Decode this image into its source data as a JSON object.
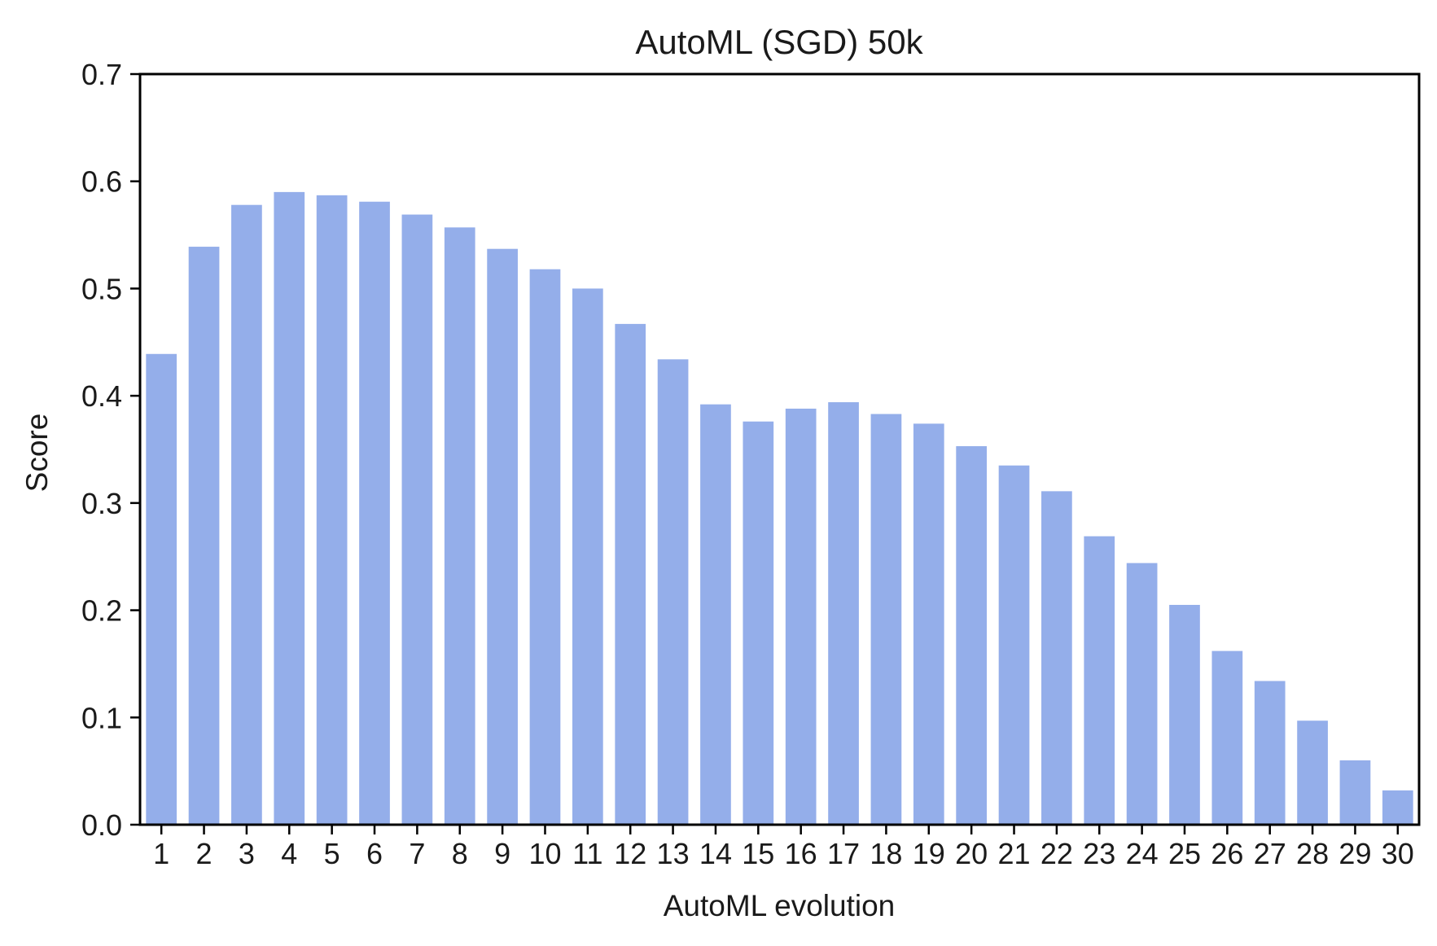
{
  "chart_data": {
    "type": "bar",
    "title": "AutoML (SGD) 50k",
    "xlabel": "AutoML evolution",
    "ylabel": "Score",
    "ylim": [
      0,
      0.7
    ],
    "yticks": [
      "0.0",
      "0.1",
      "0.2",
      "0.3",
      "0.4",
      "0.5",
      "0.6",
      "0.7"
    ],
    "categories": [
      "1",
      "2",
      "3",
      "4",
      "5",
      "6",
      "7",
      "8",
      "9",
      "10",
      "11",
      "12",
      "13",
      "14",
      "15",
      "16",
      "17",
      "18",
      "19",
      "20",
      "21",
      "22",
      "23",
      "24",
      "25",
      "26",
      "27",
      "28",
      "29",
      "30"
    ],
    "values": [
      0.439,
      0.539,
      0.578,
      0.59,
      0.587,
      0.581,
      0.569,
      0.557,
      0.537,
      0.518,
      0.5,
      0.467,
      0.434,
      0.392,
      0.376,
      0.388,
      0.394,
      0.383,
      0.374,
      0.353,
      0.335,
      0.311,
      0.269,
      0.244,
      0.205,
      0.162,
      0.134,
      0.097,
      0.06,
      0.032
    ],
    "bar_color": "#94AEEA",
    "grid": false,
    "legend": "none"
  }
}
